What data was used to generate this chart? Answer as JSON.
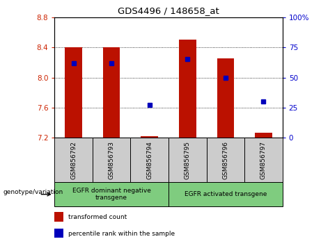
{
  "title": "GDS4496 / 148658_at",
  "samples": [
    "GSM856792",
    "GSM856793",
    "GSM856794",
    "GSM856795",
    "GSM856796",
    "GSM856797"
  ],
  "red_bar_bottom": 7.2,
  "red_bar_top": [
    8.4,
    8.4,
    7.22,
    8.5,
    8.25,
    7.27
  ],
  "blue_square_pct": [
    62,
    62,
    27,
    65,
    50,
    30
  ],
  "ylim_left": [
    7.2,
    8.8
  ],
  "ylim_right": [
    0,
    100
  ],
  "yticks_left": [
    7.2,
    7.6,
    8.0,
    8.4,
    8.8
  ],
  "yticks_right": [
    0,
    25,
    50,
    75,
    100
  ],
  "group1_label": "EGFR dominant negative\ntransgene",
  "group2_label": "EGFR activated transgene",
  "group1_samples": [
    0,
    1,
    2
  ],
  "group2_samples": [
    3,
    4,
    5
  ],
  "group_color": "#7FCC7F",
  "sample_box_color": "#CCCCCC",
  "bar_color": "#BB1100",
  "square_color": "#0000BB",
  "left_tick_color": "#CC2200",
  "right_tick_color": "#0000CC",
  "legend_red_label": "transformed count",
  "legend_blue_label": "percentile rank within the sample",
  "genotype_label": "genotype/variation"
}
